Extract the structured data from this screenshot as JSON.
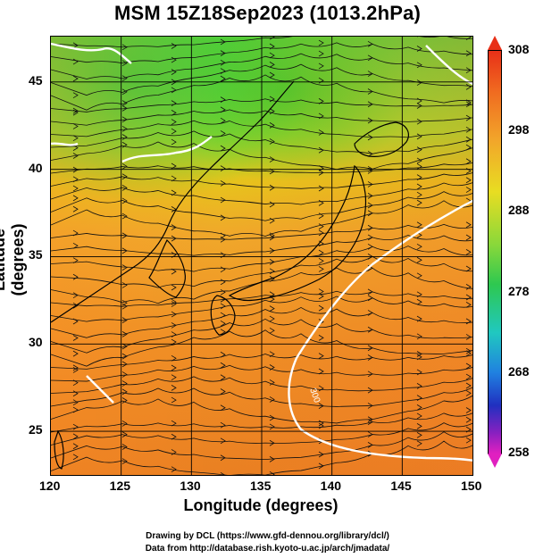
{
  "title": "MSM 15Z18Sep2023 (1013.2hPa)",
  "x_axis": {
    "label": "Longitude (degrees)",
    "ticks": [
      "120",
      "125",
      "130",
      "135",
      "140",
      "145",
      "150"
    ]
  },
  "y_axis": {
    "label": "Latitude  (degrees)",
    "ticks": [
      "45",
      "40",
      "35",
      "30",
      "25"
    ]
  },
  "colorbar": {
    "labels": [
      "308",
      "298",
      "288",
      "278",
      "268",
      "258"
    ],
    "min": 258,
    "max": 308
  },
  "credits": [
    "Drawing by DCL (https://www.gfd-dennou.org/library/dcl/)",
    "Data from http://database.rish.kyoto-u.ac.jp/arch/jmadata/"
  ],
  "map": {
    "lon_range": [
      120,
      150
    ],
    "lat_range": [
      22.5,
      47.6
    ],
    "grid_lons": [
      125,
      130,
      135,
      140,
      145
    ],
    "grid_lats": [
      25,
      30,
      35,
      40,
      45
    ],
    "contour_labels": [
      "300"
    ]
  }
}
